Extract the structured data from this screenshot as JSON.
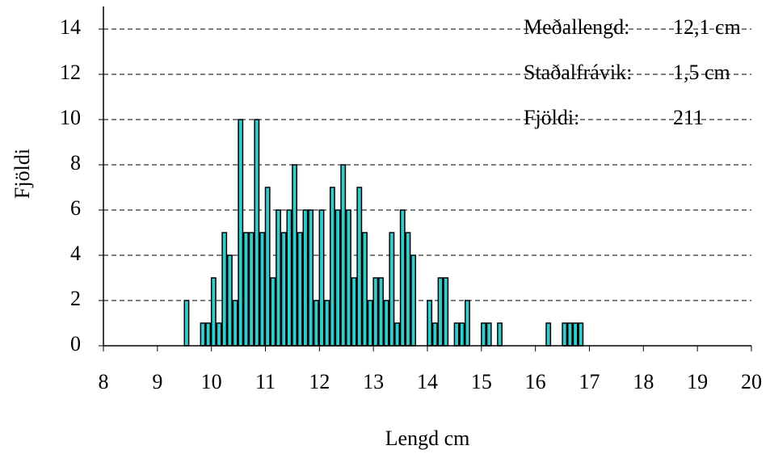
{
  "chart_data": {
    "type": "bar",
    "x_label": "Lengd cm",
    "y_label": "Fjöldi",
    "x": [
      9.5,
      9.8,
      9.9,
      10.0,
      10.1,
      10.2,
      10.3,
      10.4,
      10.5,
      10.6,
      10.7,
      10.8,
      10.9,
      11.0,
      11.1,
      11.2,
      11.3,
      11.4,
      11.5,
      11.6,
      11.7,
      11.8,
      11.9,
      12.0,
      12.1,
      12.2,
      12.3,
      12.4,
      12.5,
      12.6,
      12.7,
      12.8,
      12.9,
      13.0,
      13.1,
      13.2,
      13.3,
      13.4,
      13.5,
      13.6,
      13.7,
      14.0,
      14.1,
      14.2,
      14.3,
      14.5,
      14.6,
      14.7,
      15.0,
      15.1,
      15.3,
      16.2,
      16.5,
      16.6,
      16.7,
      16.8
    ],
    "values": [
      2,
      1,
      1,
      3,
      1,
      5,
      4,
      2,
      10,
      5,
      5,
      10,
      5,
      7,
      3,
      6,
      5,
      6,
      8,
      5,
      6,
      6,
      2,
      6,
      2,
      7,
      6,
      8,
      6,
      3,
      7,
      5,
      2,
      3,
      3,
      2,
      5,
      1,
      6,
      5,
      4,
      2,
      1,
      3,
      3,
      1,
      1,
      2,
      1,
      1,
      1,
      1,
      1,
      1,
      1,
      1
    ],
    "color": "#33cccc",
    "xlim": [
      8,
      20
    ],
    "xticks": [
      8,
      9,
      10,
      11,
      12,
      13,
      14,
      15,
      16,
      17,
      18,
      19,
      20
    ],
    "ylim": [
      0,
      15
    ],
    "yticks": [
      0,
      2,
      4,
      6,
      8,
      10,
      12,
      14
    ],
    "grid": true,
    "annotations": [
      {
        "label": "Meðallengd:",
        "value": "12,1 cm"
      },
      {
        "label": "Staðalfrávik:",
        "value": "1,5 cm"
      },
      {
        "label": "Fjöldi:",
        "value": "211"
      }
    ]
  }
}
